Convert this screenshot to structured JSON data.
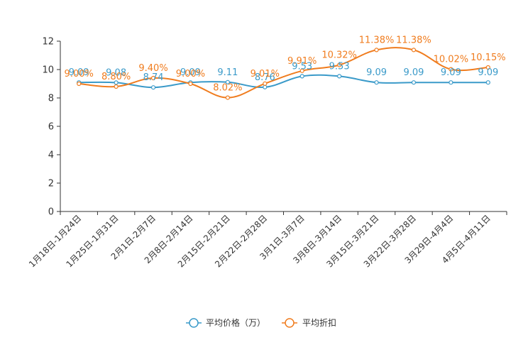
{
  "chart_data": {
    "type": "line",
    "title": "",
    "xlabel": "",
    "ylabel": "",
    "ylim": [
      0,
      12
    ],
    "yticks": [
      0,
      2,
      4,
      6,
      8,
      10,
      12
    ],
    "categories": [
      "1月18日-1月24日",
      "1月25日-1月31日",
      "2月1日-2月7日",
      "2月8日-2月14日",
      "2月15日-2月21日",
      "2月22日-2月28日",
      "3月1日-3月7日",
      "3月8日-3月14日",
      "3月15日-3月21日",
      "3月22日-3月28日",
      "3月29日-4月4日",
      "4月5日-4月11日"
    ],
    "series": [
      {
        "name": "平均价格（万）",
        "color": "#3a9ac9",
        "values": [
          9.09,
          9.08,
          8.74,
          9.09,
          9.11,
          8.76,
          9.53,
          9.53,
          9.09,
          9.09,
          9.09,
          9.09
        ],
        "labels": [
          "9.09",
          "9.08",
          "8.74",
          "9.09",
          "9.11",
          "8.76",
          "9.53",
          "9.53",
          "9.09",
          "9.09",
          "9.09",
          "9.09"
        ]
      },
      {
        "name": "平均折扣",
        "color": "#f07c1e",
        "values": [
          9.0,
          8.8,
          9.4,
          9.0,
          8.02,
          9.01,
          9.91,
          10.32,
          11.38,
          11.38,
          10.02,
          10.15
        ],
        "labels": [
          "9.00%",
          "8.80%",
          "9.40%",
          "9.00%",
          "8.02%",
          "9.01%",
          "9.91%",
          "10.32%",
          "11.38%",
          "11.38%",
          "10.02%",
          "10.15%"
        ]
      }
    ],
    "legend": "bottom-center"
  }
}
